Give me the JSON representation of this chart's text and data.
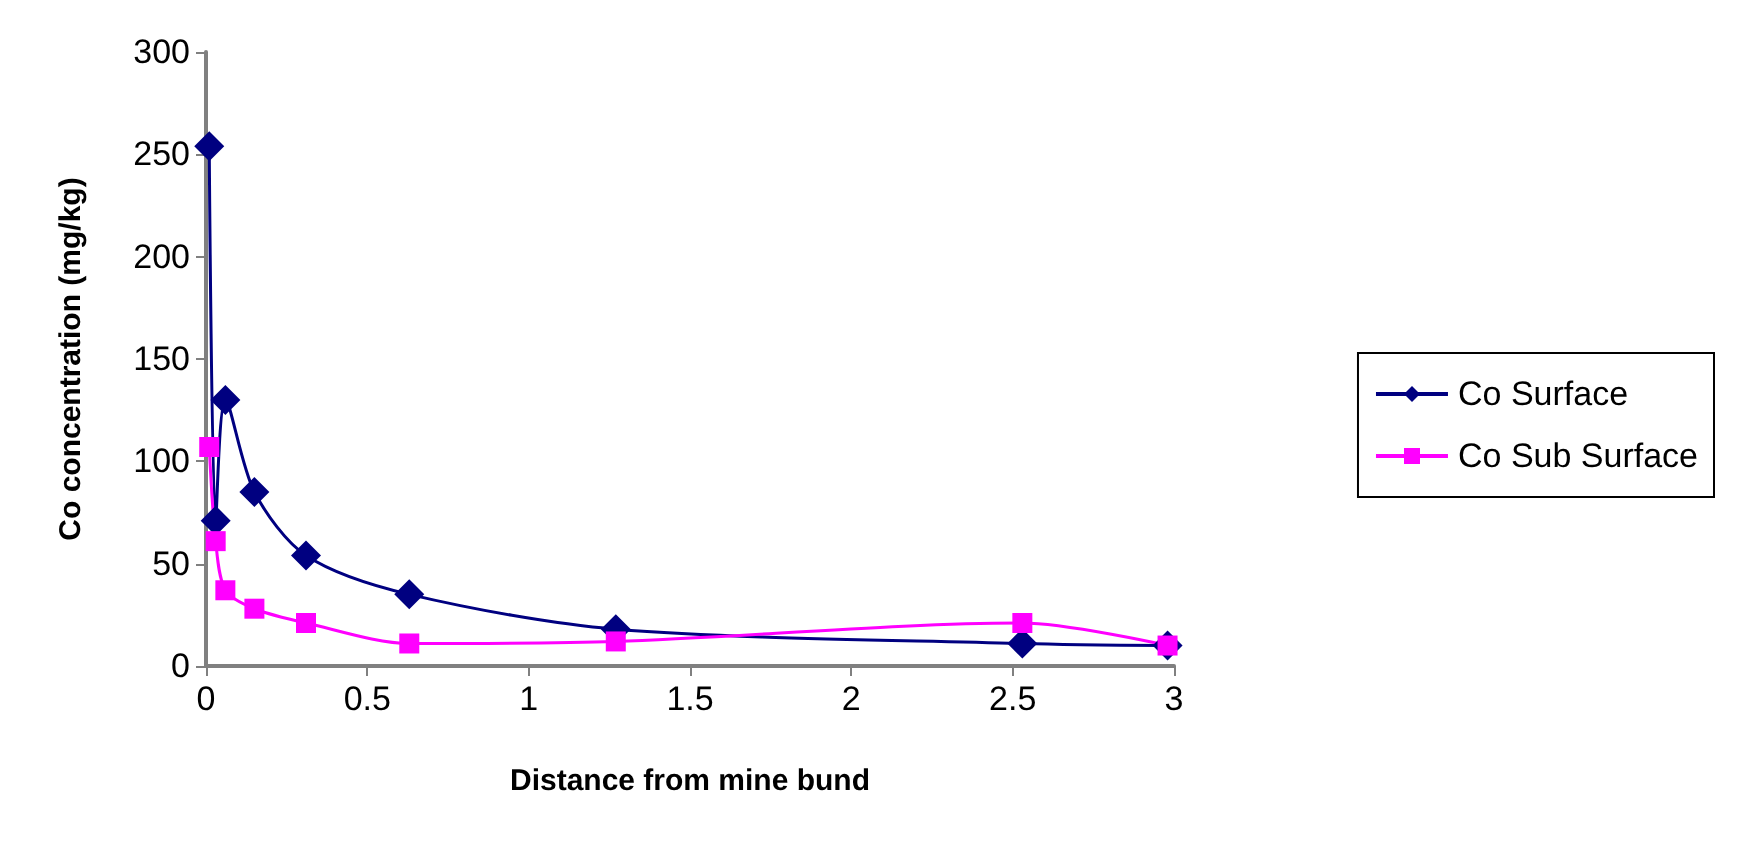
{
  "chart_data": {
    "type": "line",
    "xlabel": "Distance from mine bund",
    "ylabel": "Co concentration (mg/kg)",
    "xlim": [
      0,
      3
    ],
    "xticks": [
      0,
      0.5,
      1,
      1.5,
      2,
      2.5,
      3
    ],
    "ylim": [
      0,
      300
    ],
    "yticks": [
      0,
      50,
      100,
      150,
      200,
      250,
      300
    ],
    "grid": false,
    "legend": "right",
    "line_style": "solid",
    "series": [
      {
        "name": "Co Surface",
        "color": "#000080",
        "marker": "diamond",
        "x": [
          0.01,
          0.03,
          0.06,
          0.15,
          0.31,
          0.63,
          1.27,
          2.53,
          2.98
        ],
        "values": [
          254,
          71,
          130,
          85,
          54,
          35,
          18,
          11,
          10
        ]
      },
      {
        "name": "Co Sub Surface",
        "color": "#ff00ff",
        "marker": "square",
        "x": [
          0.01,
          0.03,
          0.06,
          0.15,
          0.31,
          0.63,
          1.27,
          2.53,
          2.98
        ],
        "values": [
          107,
          61,
          37,
          28,
          21,
          11,
          12,
          21,
          10
        ]
      }
    ]
  }
}
